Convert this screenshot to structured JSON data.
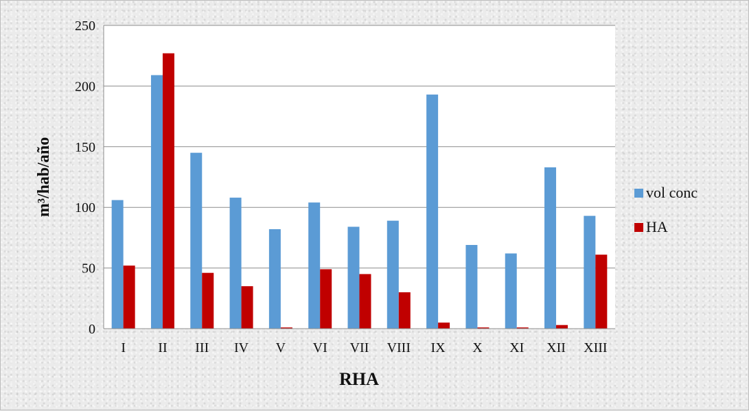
{
  "chart_data": {
    "type": "bar",
    "xlabel": "RHA",
    "ylabel": "m³/hab/año",
    "ylim": [
      0,
      250
    ],
    "yticks": [
      0,
      50,
      100,
      150,
      200,
      250
    ],
    "grid": true,
    "legend_position": "right",
    "categories": [
      "I",
      "II",
      "III",
      "IV",
      "V",
      "VI",
      "VII",
      "VIII",
      "IX",
      "X",
      "XI",
      "XII",
      "XIII"
    ],
    "series": [
      {
        "name": "vol conc",
        "color": "#5b9bd5",
        "values": [
          106,
          209,
          145,
          108,
          82,
          104,
          84,
          89,
          193,
          69,
          62,
          133,
          93
        ]
      },
      {
        "name": "HA",
        "color": "#c00000",
        "values": [
          52,
          227,
          46,
          35,
          1,
          49,
          45,
          30,
          5,
          1,
          1,
          3,
          61
        ]
      }
    ]
  }
}
